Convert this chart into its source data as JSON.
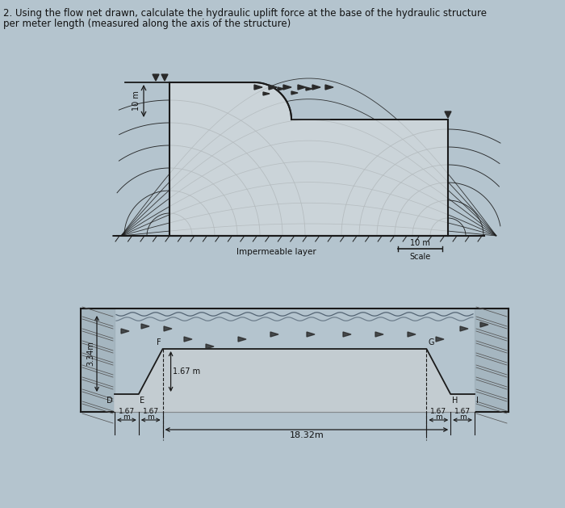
{
  "bg_color": "#b4c4ce",
  "title_line1": "2. Using the flow net drawn, calculate the hydraulic uplift force at the base of the hydraulic structure",
  "title_line2": "per meter length (measured along the axis of the structure)",
  "title_fontsize": 8.5,
  "text_color": "#111111",
  "line_color": "#1a1a1a",
  "impermeable_label": "Impermeable layer",
  "scale_label": "Scale",
  "scale_value": "10 m",
  "head_label": "10 m",
  "dim_334": "3.34m",
  "dim_167v": "1.67 m",
  "dim_1832": "18.32m",
  "dim_167": "1.67",
  "m_label": "m",
  "label_D": "D",
  "label_E": "E",
  "label_F": "F",
  "label_G": "G",
  "label_H": "H",
  "label_I": "I"
}
